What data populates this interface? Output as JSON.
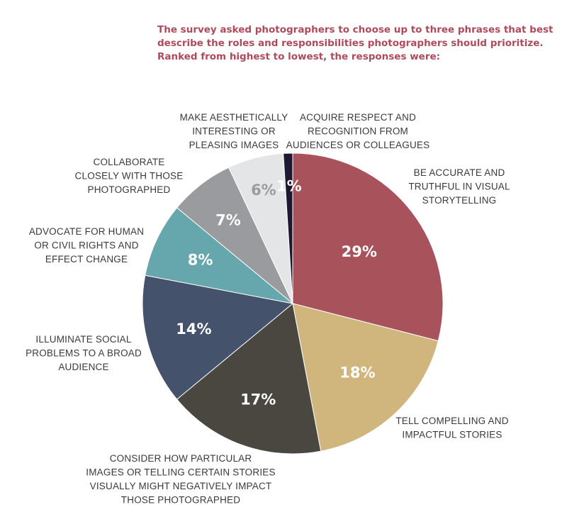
{
  "header": {
    "line1": "The survey asked photographers to choose up to three phrases that best",
    "line2": "describe the roles and responsibilities photographers should prioritize.",
    "line3": "Ranked from highest to lowest, the responses were:"
  },
  "chart_data": {
    "type": "pie",
    "title": "",
    "start_angle_deg": 0,
    "direction": "clockwise",
    "slices": [
      {
        "label_lines": [
          "BE ACCURATE AND",
          "TRUTHFUL IN VISUAL",
          "STORYTELLING"
        ],
        "value": 29,
        "value_label": "29%",
        "color": "#a8525b",
        "label_color": "#ffffff"
      },
      {
        "label_lines": [
          "TELL COMPELLING AND",
          "IMPACTFUL STORIES"
        ],
        "value": 18,
        "value_label": "18%",
        "color": "#d0b57c",
        "label_color": "#ffffff"
      },
      {
        "label_lines": [
          "CONSIDER HOW PARTICULAR",
          "IMAGES OR TELLING CERTAIN STORIES",
          "VISUALLY MIGHT NEGATIVELY IMPACT",
          "THOSE PHOTOGRAPHED"
        ],
        "value": 17,
        "value_label": "17%",
        "color": "#4a4640",
        "label_color": "#ffffff"
      },
      {
        "label_lines": [
          "ILLUMINATE SOCIAL",
          "PROBLEMS TO A BROAD",
          "AUDIENCE"
        ],
        "value": 14,
        "value_label": "14%",
        "color": "#44526c",
        "label_color": "#ffffff"
      },
      {
        "label_lines": [
          "ADVOCATE FOR HUMAN",
          "OR CIVIL RIGHTS AND",
          "EFFECT CHANGE"
        ],
        "value": 8,
        "value_label": "8%",
        "color": "#66a6ad",
        "label_color": "#ffffff"
      },
      {
        "label_lines": [
          "COLLABORATE",
          "CLOSELY WITH THOSE",
          "PHOTOGRAPHED"
        ],
        "value": 7,
        "value_label": "7%",
        "color": "#9a9b9f",
        "label_color": "#ffffff"
      },
      {
        "label_lines": [
          "MAKE AESTHETICALLY",
          "INTERESTING OR",
          "PLEASING IMAGES"
        ],
        "value": 6,
        "value_label": "6%",
        "color": "#e4e5e7",
        "label_color": "#9c9c9c"
      },
      {
        "label_lines": [
          "ACQUIRE RESPECT AND",
          "RECOGNITION FROM",
          "AUDIENCES OR COLLEAGUES"
        ],
        "value": 1,
        "value_label": "1%",
        "color": "#1e1830",
        "label_color": "#ffffff"
      }
    ]
  }
}
